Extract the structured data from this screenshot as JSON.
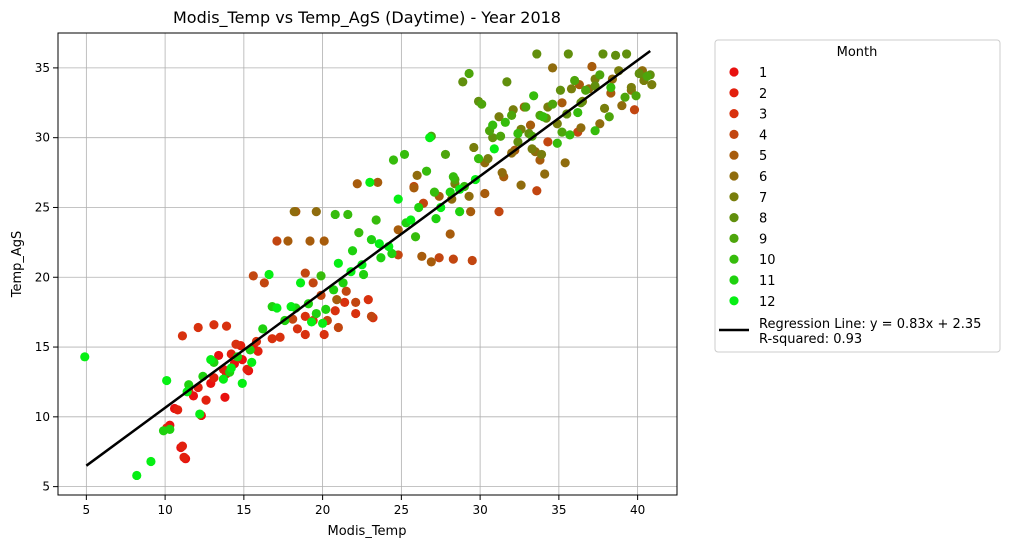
{
  "chart_data": {
    "type": "scatter",
    "title": "Modis_Temp vs Temp_AgS (Daytime) - Year 2018",
    "xlabel": "Modis_Temp",
    "ylabel": "Temp_AgS",
    "xlim": [
      3.2,
      42.5
    ],
    "ylim": [
      4.4,
      37.5
    ],
    "xticks": [
      5,
      10,
      15,
      20,
      25,
      30,
      35,
      40
    ],
    "yticks": [
      5,
      10,
      15,
      20,
      25,
      30,
      35
    ],
    "grid": true,
    "legend": {
      "title": "Month",
      "placement": "outside-right",
      "regression_label": "Regression Line: y = 0.83x + 2.35",
      "r_squared_label": "R-squared: 0.93"
    },
    "regression": {
      "slope": 0.83,
      "intercept": 2.35,
      "x_range": [
        5,
        40.8
      ],
      "color": "#000000"
    },
    "series": [
      {
        "name": "1",
        "color": "#e8110f",
        "points": [
          [
            10.3,
            9.4
          ],
          [
            10.6,
            10.6
          ],
          [
            11.0,
            7.8
          ],
          [
            11.3,
            7.0
          ],
          [
            11.8,
            11.5
          ],
          [
            12.3,
            10.1
          ],
          [
            12.9,
            12.4
          ],
          [
            13.4,
            14.4
          ],
          [
            13.8,
            11.4
          ],
          [
            14.4,
            13.8
          ],
          [
            14.9,
            14.1
          ],
          [
            15.3,
            13.3
          ],
          [
            15.6,
            15.0
          ],
          [
            13.9,
            13.1
          ]
        ]
      },
      {
        "name": "2",
        "color": "#e2200e",
        "points": [
          [
            10.1,
            9.2
          ],
          [
            10.8,
            10.5
          ],
          [
            11.1,
            7.9
          ],
          [
            11.5,
            11.9
          ],
          [
            12.1,
            12.1
          ],
          [
            12.6,
            11.2
          ],
          [
            13.1,
            12.8
          ],
          [
            13.7,
            13.4
          ],
          [
            14.2,
            14.5
          ],
          [
            14.8,
            15.1
          ],
          [
            15.2,
            13.4
          ],
          [
            15.9,
            14.7
          ],
          [
            11.2,
            7.1
          ]
        ]
      },
      {
        "name": "3",
        "color": "#d8310e",
        "points": [
          [
            11.1,
            15.8
          ],
          [
            12.1,
            16.4
          ],
          [
            13.1,
            16.6
          ],
          [
            13.9,
            16.5
          ],
          [
            14.5,
            15.2
          ],
          [
            15.8,
            15.4
          ],
          [
            16.8,
            15.6
          ],
          [
            17.3,
            15.7
          ],
          [
            18.4,
            16.3
          ],
          [
            18.9,
            17.2
          ],
          [
            19.4,
            16.9
          ],
          [
            20.1,
            15.9
          ],
          [
            20.8,
            17.6
          ],
          [
            21.4,
            18.2
          ],
          [
            22.1,
            17.4
          ],
          [
            22.9,
            18.4
          ],
          [
            23.2,
            17.1
          ],
          [
            18.9,
            15.9
          ]
        ]
      },
      {
        "name": "4",
        "color": "#c24610",
        "points": [
          [
            15.6,
            20.1
          ],
          [
            16.3,
            19.6
          ],
          [
            17.1,
            22.6
          ],
          [
            18.1,
            17.0
          ],
          [
            18.9,
            20.3
          ],
          [
            19.4,
            19.6
          ],
          [
            19.9,
            18.7
          ],
          [
            20.3,
            16.9
          ],
          [
            21.0,
            16.4
          ],
          [
            21.5,
            19.0
          ],
          [
            22.1,
            18.2
          ],
          [
            23.1,
            17.2
          ],
          [
            24.8,
            21.6
          ],
          [
            25.8,
            26.5
          ],
          [
            26.4,
            25.3
          ],
          [
            27.4,
            21.4
          ],
          [
            28.3,
            21.3
          ],
          [
            29.5,
            21.2
          ],
          [
            31.2,
            24.7
          ],
          [
            33.6,
            26.2
          ],
          [
            34.3,
            29.7
          ],
          [
            36.2,
            30.4
          ],
          [
            39.8,
            32.0
          ]
        ]
      },
      {
        "name": "5",
        "color": "#a75c0c",
        "points": [
          [
            17.8,
            22.6
          ],
          [
            18.3,
            24.7
          ],
          [
            19.2,
            22.6
          ],
          [
            20.1,
            22.6
          ],
          [
            20.9,
            18.4
          ],
          [
            22.2,
            26.7
          ],
          [
            23.5,
            26.8
          ],
          [
            24.8,
            23.4
          ],
          [
            25.8,
            26.4
          ],
          [
            26.3,
            21.5
          ],
          [
            26.9,
            21.1
          ],
          [
            27.4,
            25.8
          ],
          [
            28.1,
            23.1
          ],
          [
            29.4,
            24.7
          ],
          [
            30.3,
            26.0
          ],
          [
            31.5,
            27.2
          ],
          [
            32.2,
            29.1
          ],
          [
            32.8,
            32.2
          ],
          [
            33.2,
            30.9
          ],
          [
            33.8,
            28.4
          ],
          [
            35.2,
            32.5
          ],
          [
            36.3,
            33.8
          ],
          [
            37.1,
            35.1
          ],
          [
            38.3,
            33.2
          ]
        ]
      },
      {
        "name": "6",
        "color": "#8f6c0d",
        "points": [
          [
            18.2,
            24.7
          ],
          [
            19.6,
            24.7
          ],
          [
            26.0,
            27.3
          ],
          [
            28.2,
            25.6
          ],
          [
            29.3,
            25.8
          ],
          [
            30.3,
            28.2
          ],
          [
            31.4,
            27.5
          ],
          [
            32.0,
            28.9
          ],
          [
            32.6,
            26.6
          ],
          [
            33.5,
            29.0
          ],
          [
            34.1,
            27.4
          ],
          [
            34.6,
            35.0
          ],
          [
            35.4,
            28.2
          ],
          [
            36.4,
            30.7
          ],
          [
            36.9,
            33.5
          ],
          [
            37.6,
            31.0
          ],
          [
            38.4,
            34.2
          ],
          [
            39.0,
            32.3
          ],
          [
            39.6,
            33.4
          ],
          [
            40.3,
            34.8
          ]
        ]
      },
      {
        "name": "7",
        "color": "#787e0c",
        "points": [
          [
            28.4,
            26.7
          ],
          [
            29.6,
            29.3
          ],
          [
            30.5,
            28.5
          ],
          [
            31.2,
            31.5
          ],
          [
            32.1,
            32.0
          ],
          [
            32.6,
            30.6
          ],
          [
            33.3,
            29.2
          ],
          [
            34.3,
            32.2
          ],
          [
            34.9,
            31.0
          ],
          [
            35.8,
            33.5
          ],
          [
            36.5,
            32.6
          ],
          [
            37.3,
            34.2
          ],
          [
            37.9,
            32.1
          ],
          [
            38.8,
            34.8
          ],
          [
            39.6,
            33.6
          ],
          [
            40.4,
            34.1
          ],
          [
            40.9,
            33.8
          ],
          [
            33.9,
            28.8
          ]
        ]
      },
      {
        "name": "8",
        "color": "#618f0d",
        "points": [
          [
            28.9,
            34.0
          ],
          [
            29.9,
            32.6
          ],
          [
            30.8,
            30.0
          ],
          [
            31.7,
            34.0
          ],
          [
            32.4,
            29.7
          ],
          [
            33.1,
            30.3
          ],
          [
            33.6,
            36.0
          ],
          [
            34.2,
            31.4
          ],
          [
            35.1,
            33.4
          ],
          [
            35.6,
            36.0
          ],
          [
            36.4,
            32.5
          ],
          [
            37.3,
            33.7
          ],
          [
            37.8,
            36.0
          ],
          [
            38.6,
            35.9
          ],
          [
            39.3,
            36.0
          ],
          [
            40.1,
            34.6
          ],
          [
            40.8,
            34.5
          ],
          [
            35.5,
            31.7
          ]
        ]
      },
      {
        "name": "9",
        "color": "#4da50b",
        "points": [
          [
            26.9,
            30.1
          ],
          [
            27.8,
            28.8
          ],
          [
            28.4,
            27.0
          ],
          [
            29.3,
            34.6
          ],
          [
            30.1,
            32.4
          ],
          [
            30.6,
            30.5
          ],
          [
            31.3,
            30.1
          ],
          [
            32.0,
            31.6
          ],
          [
            32.9,
            32.2
          ],
          [
            33.3,
            30.1
          ],
          [
            33.8,
            31.6
          ],
          [
            34.6,
            32.4
          ],
          [
            35.2,
            30.4
          ],
          [
            36.0,
            34.1
          ],
          [
            36.7,
            33.4
          ],
          [
            37.6,
            34.5
          ],
          [
            38.2,
            31.5
          ],
          [
            39.2,
            32.9
          ],
          [
            39.9,
            33.0
          ],
          [
            40.6,
            34.4
          ]
        ]
      },
      {
        "name": "10",
        "color": "#36bc0c",
        "points": [
          [
            19.9,
            20.1
          ],
          [
            20.8,
            24.5
          ],
          [
            21.6,
            24.5
          ],
          [
            22.3,
            23.2
          ],
          [
            23.4,
            24.1
          ],
          [
            24.5,
            28.4
          ],
          [
            25.2,
            28.8
          ],
          [
            25.9,
            22.9
          ],
          [
            26.6,
            27.6
          ],
          [
            27.1,
            26.1
          ],
          [
            28.3,
            27.2
          ],
          [
            29.0,
            26.5
          ],
          [
            29.9,
            28.5
          ],
          [
            30.8,
            30.9
          ],
          [
            31.6,
            31.1
          ],
          [
            32.4,
            30.3
          ],
          [
            33.4,
            33.0
          ],
          [
            34.0,
            31.5
          ],
          [
            34.9,
            29.6
          ],
          [
            35.7,
            30.2
          ],
          [
            36.2,
            31.8
          ],
          [
            37.3,
            30.5
          ],
          [
            38.3,
            33.6
          ]
        ]
      },
      {
        "name": "11",
        "color": "#1ed10e",
        "points": [
          [
            9.9,
            9.0
          ],
          [
            10.3,
            9.1
          ],
          [
            11.5,
            12.3
          ],
          [
            12.4,
            12.9
          ],
          [
            13.1,
            13.9
          ],
          [
            14.1,
            13.2
          ],
          [
            14.6,
            14.3
          ],
          [
            15.4,
            14.8
          ],
          [
            16.2,
            16.3
          ],
          [
            16.8,
            17.9
          ],
          [
            17.6,
            16.9
          ],
          [
            18.3,
            17.8
          ],
          [
            19.1,
            18.1
          ],
          [
            19.6,
            17.4
          ],
          [
            20.2,
            17.7
          ],
          [
            20.7,
            19.1
          ],
          [
            21.3,
            19.6
          ],
          [
            21.9,
            21.9
          ],
          [
            22.6,
            20.2
          ],
          [
            23.1,
            22.7
          ],
          [
            23.7,
            21.4
          ],
          [
            24.4,
            21.7
          ],
          [
            25.3,
            23.9
          ],
          [
            26.1,
            25.0
          ],
          [
            27.2,
            24.2
          ],
          [
            28.1,
            26.1
          ],
          [
            28.7,
            24.7
          ]
        ]
      },
      {
        "name": "12",
        "color": "#06ef14",
        "points": [
          [
            4.9,
            14.3
          ],
          [
            8.2,
            5.8
          ],
          [
            9.1,
            6.8
          ],
          [
            10.1,
            12.6
          ],
          [
            11.4,
            11.8
          ],
          [
            12.2,
            10.2
          ],
          [
            12.9,
            14.1
          ],
          [
            13.7,
            12.7
          ],
          [
            14.2,
            13.5
          ],
          [
            14.9,
            12.4
          ],
          [
            15.5,
            13.9
          ],
          [
            16.6,
            20.2
          ],
          [
            17.1,
            17.8
          ],
          [
            18.0,
            17.9
          ],
          [
            18.6,
            19.6
          ],
          [
            19.3,
            16.8
          ],
          [
            20.0,
            16.7
          ],
          [
            21.0,
            21.0
          ],
          [
            21.8,
            20.4
          ],
          [
            22.5,
            20.9
          ],
          [
            23.0,
            26.8
          ],
          [
            23.6,
            22.4
          ],
          [
            24.2,
            22.2
          ],
          [
            24.8,
            25.6
          ],
          [
            25.6,
            24.1
          ],
          [
            26.8,
            30.0
          ],
          [
            27.5,
            25.0
          ],
          [
            28.7,
            26.3
          ],
          [
            29.7,
            27.0
          ],
          [
            30.9,
            29.2
          ]
        ]
      }
    ]
  }
}
